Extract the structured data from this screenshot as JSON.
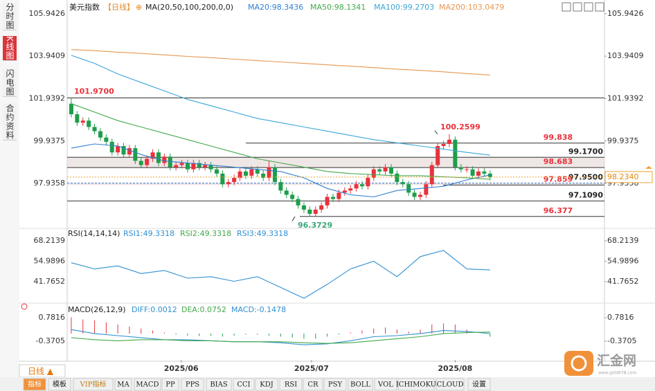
{
  "sidebar_tabs": [
    "分时图",
    "K线图",
    "闪电图",
    "合约资料"
  ],
  "period_button": "日线 ▲",
  "logo": {
    "name": "汇金网",
    "url": "www.gold678.com"
  },
  "indicator_tabs": [
    "指标",
    "模板",
    "VIP指标",
    "MA",
    "MACD",
    "PP",
    "PPS",
    "BIAS",
    "CCI",
    "KDJ",
    "RSI",
    "CR",
    "PSY",
    "BOLL",
    "VOL",
    "ICHIMOKU",
    "CLOUD",
    "设置"
  ],
  "chart_data": [
    {
      "type": "candlestick",
      "title": "美元指数",
      "period": "【日线】",
      "icon": "⊕",
      "indicator": "MA(20,50,100,200,0,0)",
      "up_color": "#e8323c",
      "down_color": "#1e9e4a",
      "xlim": [
        -0.71,
        91.67
      ],
      "xticks": [
        {
          "value": 18.9,
          "label": "2025/06"
        },
        {
          "value": 41.3,
          "label": "2025/07"
        },
        {
          "value": 66,
          "label": "2025/08"
        }
      ],
      "ylim": [
        95.88,
        106.33
      ],
      "yticks": [
        {
          "value": 105.9426,
          "label": "105.9426"
        },
        {
          "value": 103.9409,
          "label": "103.9409"
        },
        {
          "value": 101.9392,
          "label": "101.9392"
        },
        {
          "value": 99.9375,
          "label": "99.9375"
        },
        {
          "value": 97.9358,
          "label": "97.9358"
        }
      ],
      "current": {
        "value": 98.234,
        "label": "98.2340"
      },
      "open": [
        101.7,
        101.2,
        100.8,
        100.9,
        100.6,
        100.4,
        100.1,
        99.9,
        99.4,
        99.7,
        99.3,
        99.6,
        99.0,
        98.8,
        99.1,
        99.4,
        98.9,
        99.2,
        98.7,
        98.8,
        98.9,
        98.6,
        98.9,
        98.7,
        98.8,
        98.6,
        98.4,
        97.9,
        98.0,
        98.2,
        98.5,
        98.3,
        98.6,
        98.4,
        98.2,
        98.7,
        98.0,
        97.6,
        97.4,
        97.2,
        96.9,
        96.7,
        96.5,
        96.7,
        96.9,
        97.3,
        97.2,
        97.5,
        97.6,
        97.7,
        97.9,
        97.8,
        98.2,
        98.6,
        98.5,
        98.7,
        98.4,
        98.0,
        97.9,
        97.5,
        97.3,
        97.4,
        97.9,
        98.8,
        99.7,
        99.8,
        100.0,
        98.7,
        98.6,
        98.6,
        98.3,
        98.5,
        98.4
      ],
      "high": [
        101.97,
        101.35,
        101.05,
        101.05,
        100.75,
        100.55,
        100.25,
        100.05,
        99.85,
        99.85,
        99.75,
        99.75,
        99.15,
        99.25,
        99.55,
        99.55,
        99.35,
        99.35,
        98.95,
        99.05,
        99.05,
        99.05,
        99.05,
        98.95,
        98.95,
        98.75,
        98.55,
        98.15,
        98.35,
        98.65,
        98.65,
        98.75,
        98.75,
        98.55,
        99.0,
        98.85,
        98.15,
        97.75,
        97.55,
        97.35,
        97.05,
        96.85,
        96.85,
        97.05,
        97.45,
        97.45,
        97.65,
        97.75,
        97.85,
        98.05,
        98.05,
        98.35,
        98.75,
        98.75,
        98.85,
        98.85,
        98.55,
        98.15,
        98.05,
        97.65,
        97.55,
        98.05,
        98.95,
        99.85,
        99.95,
        100.26,
        100.15,
        98.85,
        98.75,
        98.75,
        98.65,
        98.65,
        98.55
      ],
      "low": [
        101.05,
        100.65,
        100.65,
        100.45,
        100.25,
        99.95,
        99.75,
        99.25,
        99.25,
        99.15,
        99.15,
        98.85,
        98.65,
        98.65,
        98.95,
        98.75,
        98.75,
        98.55,
        98.55,
        98.65,
        98.45,
        98.45,
        98.55,
        98.55,
        98.45,
        98.25,
        97.75,
        97.75,
        97.85,
        98.05,
        98.15,
        98.15,
        98.25,
        98.05,
        98.05,
        97.85,
        97.45,
        97.25,
        97.05,
        96.75,
        96.55,
        96.37,
        96.4,
        96.55,
        96.75,
        97.05,
        97.05,
        97.35,
        97.45,
        97.55,
        97.65,
        97.65,
        98.05,
        98.35,
        98.35,
        98.25,
        97.85,
        97.75,
        97.35,
        97.15,
        97.15,
        97.25,
        97.75,
        98.65,
        99.55,
        99.65,
        98.55,
        98.45,
        98.45,
        98.15,
        98.15,
        98.25,
        98.08
      ],
      "close": [
        101.2,
        100.8,
        100.9,
        100.6,
        100.4,
        100.1,
        99.9,
        99.4,
        99.7,
        99.3,
        99.6,
        99.0,
        98.8,
        99.1,
        99.4,
        98.9,
        99.2,
        98.7,
        98.8,
        98.9,
        98.6,
        98.9,
        98.7,
        98.8,
        98.6,
        98.4,
        97.9,
        98.0,
        98.2,
        98.5,
        98.3,
        98.6,
        98.4,
        98.2,
        98.7,
        98.0,
        97.6,
        97.4,
        97.2,
        96.9,
        96.7,
        96.5,
        96.7,
        96.9,
        97.3,
        97.2,
        97.5,
        97.6,
        97.7,
        97.9,
        97.8,
        98.2,
        98.6,
        98.5,
        98.7,
        98.4,
        98.0,
        97.9,
        97.5,
        97.3,
        97.4,
        97.9,
        98.8,
        99.7,
        99.8,
        100.0,
        98.7,
        98.6,
        98.6,
        98.3,
        98.5,
        98.4,
        98.23
      ],
      "series": [
        {
          "name": "MA20:98.3436",
          "color": "#2f7fd0",
          "x": [
            0,
            4,
            8,
            12,
            16,
            20,
            24,
            28,
            32,
            36,
            40,
            44,
            48,
            52,
            56,
            60,
            64,
            68,
            72
          ],
          "values": [
            99.6,
            99.8,
            99.7,
            99.3,
            99.0,
            98.9,
            98.8,
            98.7,
            98.6,
            98.5,
            98.2,
            97.7,
            97.4,
            97.3,
            97.6,
            97.7,
            97.8,
            98.1,
            98.34
          ]
        },
        {
          "name": "MA50:98.1341",
          "color": "#43a84a",
          "x": [
            0,
            4,
            8,
            12,
            16,
            20,
            24,
            28,
            32,
            36,
            40,
            44,
            48,
            52,
            56,
            60,
            64,
            68,
            72
          ],
          "values": [
            101.7,
            101.3,
            100.9,
            100.6,
            100.3,
            100.0,
            99.7,
            99.4,
            99.1,
            98.9,
            98.7,
            98.5,
            98.4,
            98.35,
            98.3,
            98.3,
            98.25,
            98.2,
            98.13
          ]
        },
        {
          "name": "MA100:99.2703",
          "color": "#3aa5d8",
          "x": [
            0,
            4,
            8,
            12,
            16,
            20,
            24,
            28,
            32,
            36,
            40,
            44,
            48,
            52,
            56,
            60,
            64,
            68,
            72
          ],
          "values": [
            103.98,
            103.6,
            103.1,
            102.7,
            102.3,
            101.9,
            101.6,
            101.3,
            101.0,
            100.8,
            100.6,
            100.4,
            100.2,
            100.0,
            99.85,
            99.7,
            99.55,
            99.4,
            99.27
          ]
        },
        {
          "name": "MA200:103.0479",
          "color": "#e8964f",
          "x": [
            0,
            4,
            8,
            12,
            16,
            20,
            24,
            28,
            32,
            36,
            40,
            44,
            48,
            52,
            56,
            60,
            64,
            68,
            72
          ],
          "values": [
            104.25,
            104.2,
            104.13,
            104.07,
            104.0,
            103.93,
            103.87,
            103.8,
            103.73,
            103.67,
            103.6,
            103.53,
            103.47,
            103.4,
            103.33,
            103.27,
            103.2,
            103.12,
            103.05
          ]
        }
      ],
      "levels": [
        {
          "value": 101.97,
          "label": "101.9700",
          "color": "#e8323c"
        },
        {
          "value": 99.838,
          "label": "99.838",
          "color": "#e8323c"
        },
        {
          "value": 99.17,
          "label": "99.1700",
          "color": "#222222"
        },
        {
          "value": 98.683,
          "label": "98.683",
          "color": "#e8323c"
        },
        {
          "value": 97.95,
          "label": "97.9500",
          "color": "#222222"
        },
        {
          "value": 97.859,
          "label": "97.859",
          "color": "#e8323c"
        },
        {
          "value": 97.109,
          "label": "97.1090",
          "color": "#222222"
        },
        {
          "value": 96.377,
          "label": "96.377",
          "color": "#e8323c"
        }
      ],
      "annotations": [
        {
          "value": 100.2599,
          "label": "100.2599",
          "color": "#e8323c"
        },
        {
          "value": 96.3729,
          "label": "96.3729",
          "color": "#3aa87a"
        }
      ]
    },
    {
      "type": "line",
      "title": "RSI(14,14,14)",
      "ylim": [
        28.3,
        74.94
      ],
      "yticks": [
        {
          "value": 68.2139,
          "label": "68.2139"
        },
        {
          "value": 54.9896,
          "label": "54.9896"
        },
        {
          "value": 41.7652,
          "label": "41.7652"
        }
      ],
      "series": [
        {
          "name": "RSI1:49.3318",
          "color": "#2f8fd0",
          "x": [
            0,
            4,
            8,
            12,
            16,
            20,
            24,
            28,
            32,
            36,
            40,
            44,
            48,
            52,
            56,
            60,
            64,
            68,
            72
          ],
          "values": [
            54,
            50,
            52,
            47,
            49,
            44,
            45,
            42,
            45,
            38,
            31,
            40,
            50,
            55,
            45,
            58,
            62,
            50,
            49.33
          ]
        },
        {
          "name": "RSI2:49.3318",
          "color": "#43a84a",
          "values": []
        },
        {
          "name": "RSI3:49.3318",
          "color": "#2f8fd0",
          "values": []
        }
      ]
    },
    {
      "type": "macd",
      "title": "MACD(26,12,9)",
      "ylim": [
        -1.29,
        1.43
      ],
      "yticks": [
        0.7816,
        -0.3705
      ],
      "up_color": "#e8323c",
      "down_color": "#1e9e4a",
      "bars": {
        "x": [
          0,
          2,
          4,
          6,
          8,
          10,
          12,
          14,
          16,
          18,
          20,
          22,
          24,
          26,
          28,
          30,
          32,
          34,
          36,
          38,
          40,
          42,
          44,
          46,
          48,
          50,
          52,
          54,
          56,
          58,
          60,
          62,
          64,
          66,
          68,
          70,
          72
        ],
        "values": [
          0.8,
          0.7,
          0.65,
          0.55,
          0.45,
          0.35,
          0.25,
          0.15,
          0.05,
          -0.05,
          -0.1,
          -0.12,
          -0.1,
          -0.15,
          -0.1,
          -0.05,
          -0.05,
          -0.1,
          -0.15,
          -0.2,
          -0.25,
          -0.25,
          -0.15,
          -0.05,
          0.05,
          0.15,
          0.25,
          0.3,
          0.2,
          0.1,
          0.2,
          0.45,
          0.5,
          0.45,
          0.2,
          0.0,
          -0.1478
        ]
      },
      "series": [
        {
          "name": "DIFF:0.0012",
          "color": "#2f8fd0",
          "x": [
            0,
            4,
            8,
            12,
            16,
            20,
            24,
            28,
            32,
            36,
            40,
            44,
            48,
            52,
            56,
            60,
            64,
            68,
            72
          ],
          "values": [
            0.2,
            0.0,
            -0.1,
            -0.2,
            -0.3,
            -0.3,
            -0.35,
            -0.4,
            -0.4,
            -0.45,
            -0.55,
            -0.5,
            -0.35,
            -0.15,
            -0.1,
            0.0,
            0.15,
            0.1,
            0.0012
          ]
        },
        {
          "name": "DEA:0.0752",
          "color": "#43a84a",
          "x": [
            0,
            4,
            8,
            12,
            16,
            20,
            24,
            28,
            32,
            36,
            40,
            44,
            48,
            52,
            56,
            60,
            64,
            68,
            72
          ],
          "values": [
            -0.2,
            -0.3,
            -0.35,
            -0.3,
            -0.3,
            -0.35,
            -0.35,
            -0.4,
            -0.4,
            -0.4,
            -0.45,
            -0.48,
            -0.45,
            -0.35,
            -0.25,
            -0.15,
            0.0,
            0.05,
            0.0752
          ]
        },
        {
          "name": "MACD:-0.1478",
          "color": "#2f8fd0",
          "values": []
        }
      ]
    }
  ]
}
